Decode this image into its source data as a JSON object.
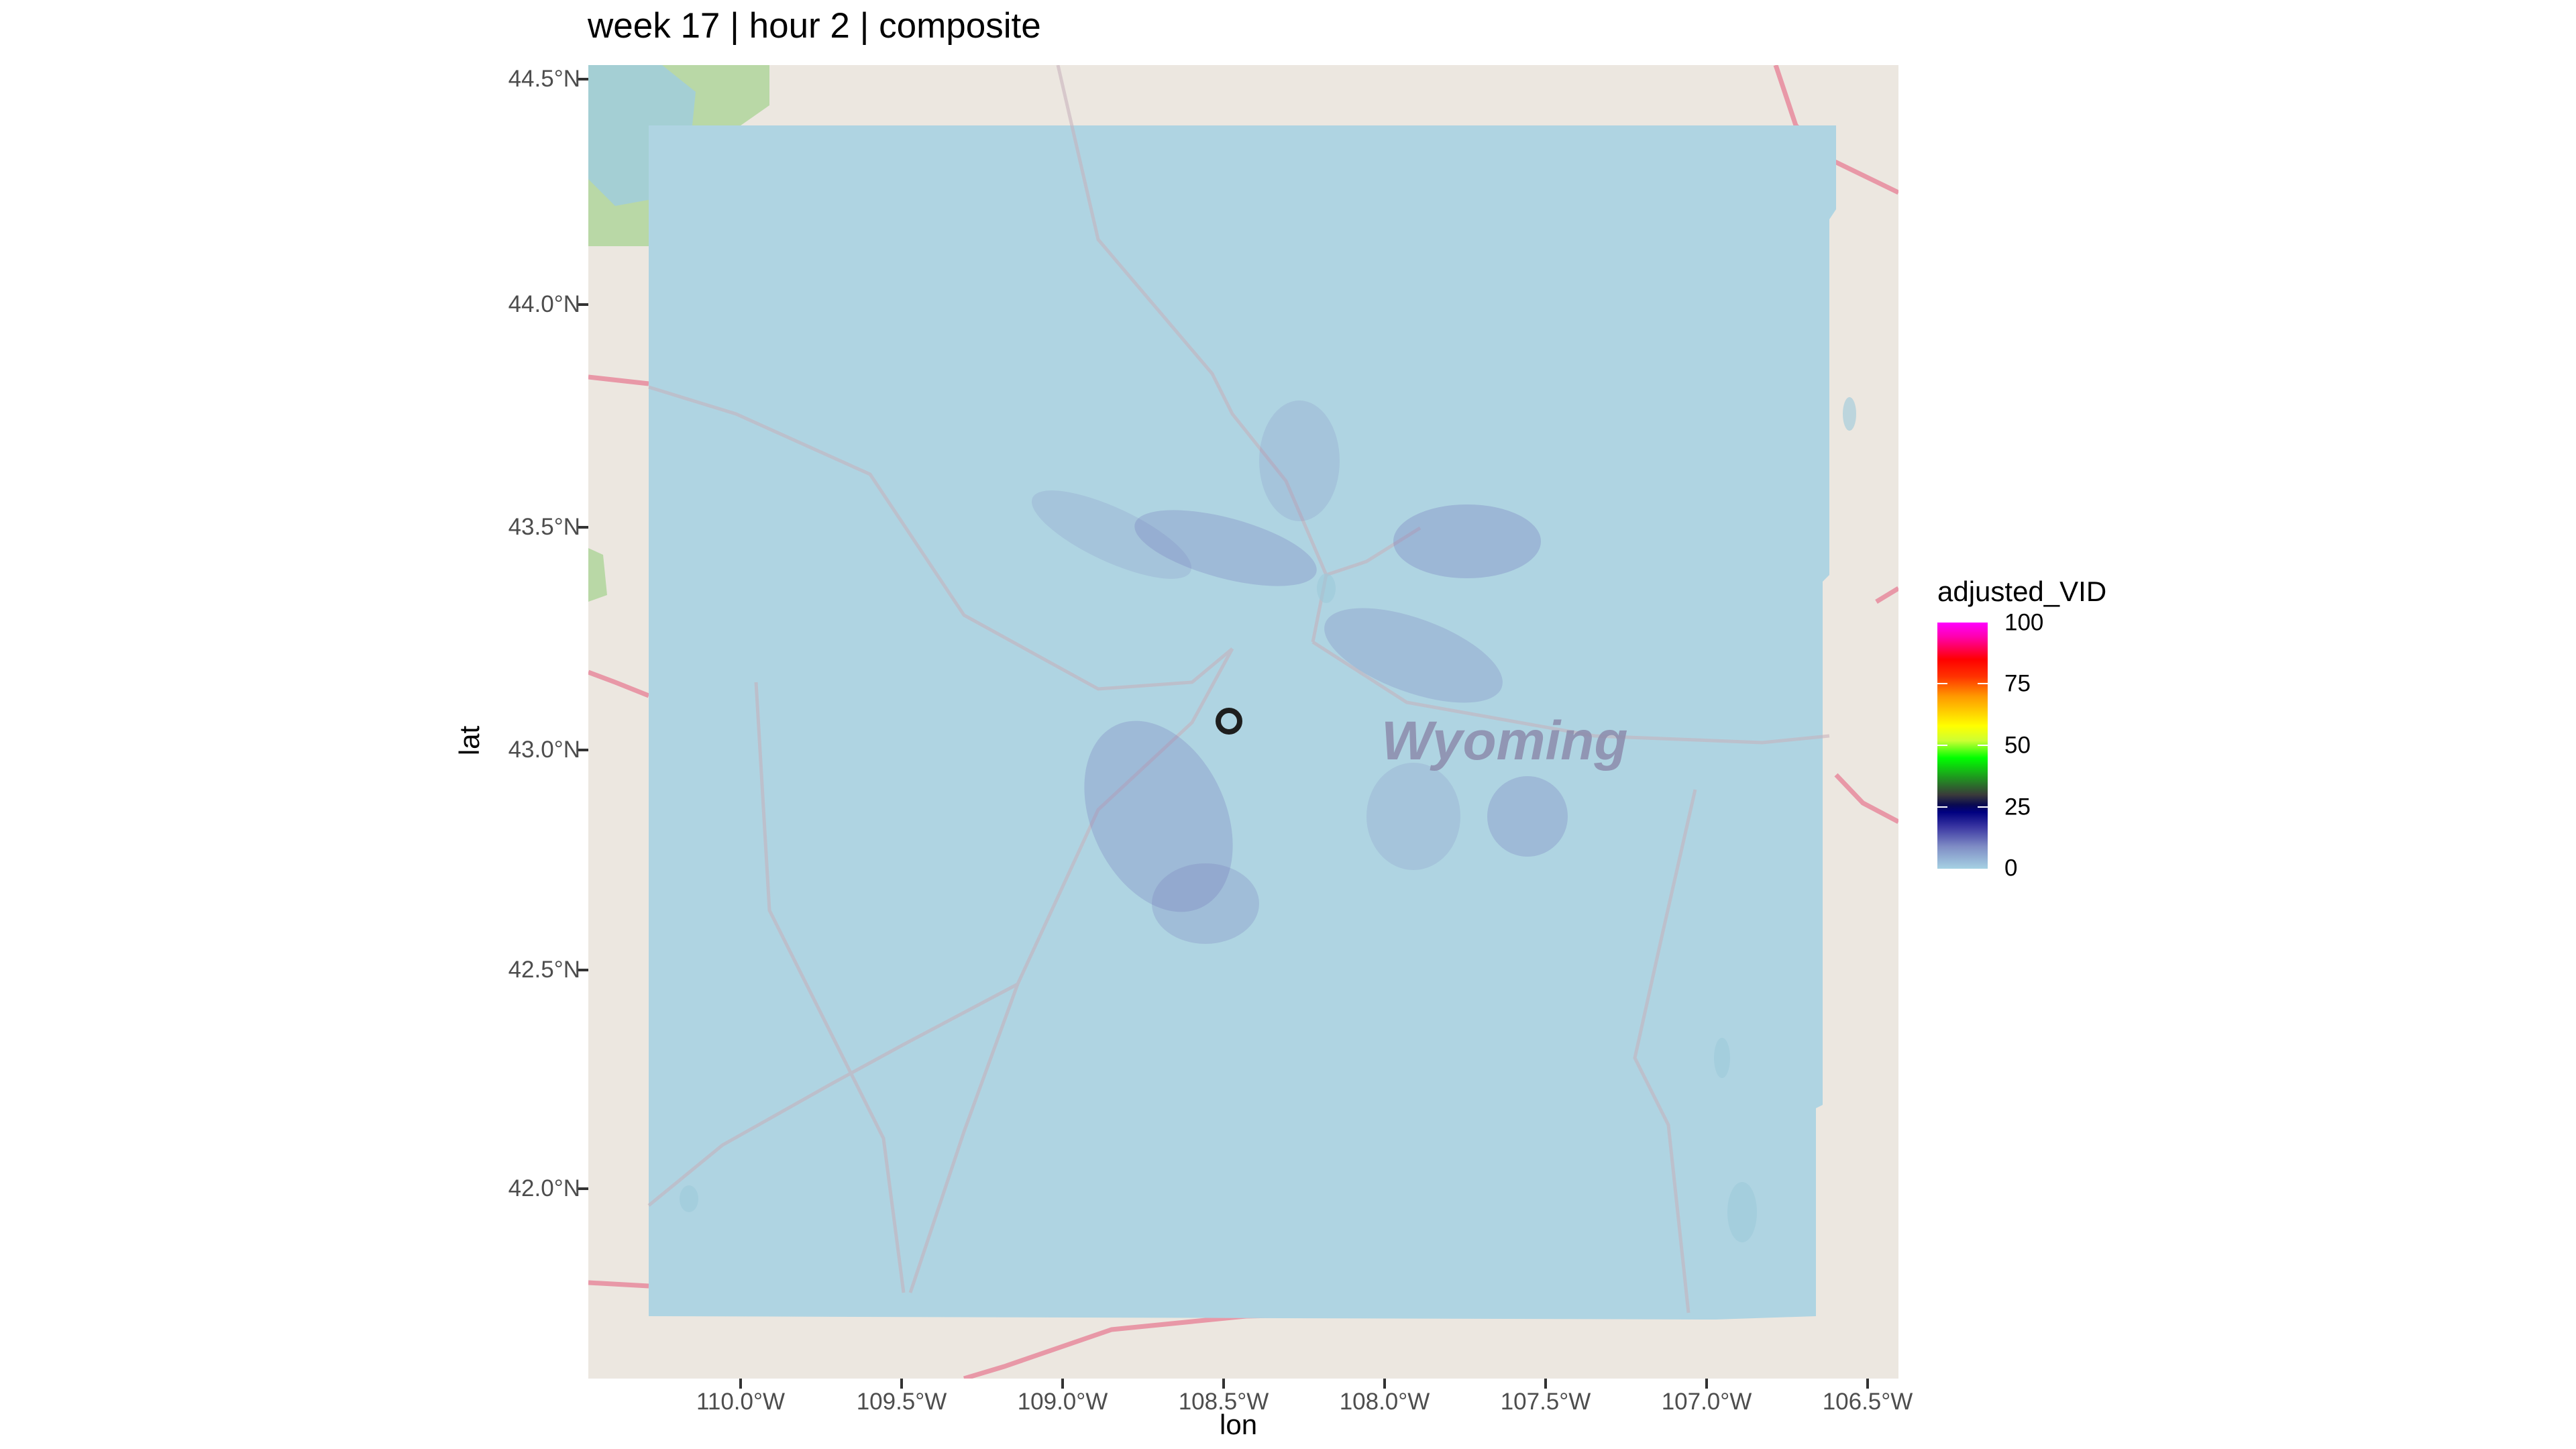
{
  "title": "week 17 | hour 2 | composite",
  "map": {
    "xlabel": "lon",
    "ylabel": "lat",
    "lat_ticks": [
      "44.5°N",
      "44.0°N",
      "43.5°N",
      "43.0°N",
      "42.5°N",
      "42.0°N"
    ],
    "lon_ticks": [
      "110.0°W",
      "109.5°W",
      "109.0°W",
      "108.5°W",
      "108.0°W",
      "107.5°W",
      "107.0°W",
      "106.5°W"
    ],
    "basemap_label": "Wyoming",
    "radar_site": {
      "lon": -108.48,
      "lat": 43.07
    }
  },
  "legend": {
    "title": "adjusted_VID",
    "labels": [
      "100",
      "75",
      "50",
      "25",
      "0"
    ],
    "colors": [
      "#a6d2e3",
      "#000080",
      "#00ff00",
      "#ffff00",
      "#ff0000",
      "#ff00ff"
    ]
  }
}
